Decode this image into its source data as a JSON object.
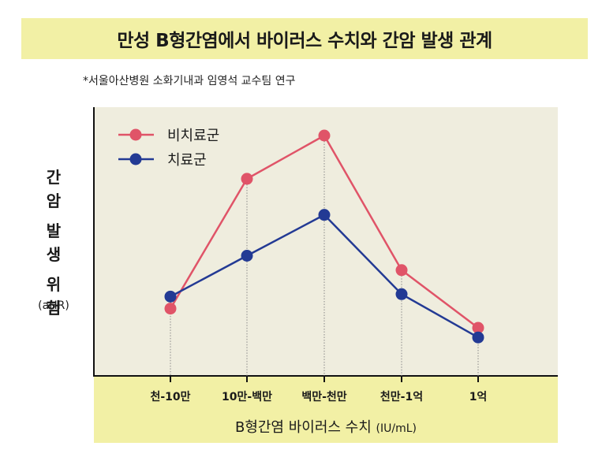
{
  "title": "만성 B형간염에서 바이러스 수치와 간암 발생 관계",
  "source_note": "*서울아산병원 소화기내과 임영석 교수팀 연구",
  "chart_data": {
    "type": "line",
    "categories": [
      "천-10만",
      "10만-백만",
      "백만-천만",
      "천만-1억",
      "1억"
    ],
    "xlabel": "B형간염 바이러스 수치",
    "xunit": "(IU/mL)",
    "ylabel_lines": [
      "간",
      "암",
      "발",
      "생",
      "위",
      "험"
    ],
    "yunit": "(aHR)",
    "ylim": [
      0,
      10
    ],
    "grid": false,
    "legend_position": "top-left",
    "series": [
      {
        "name": "비치료군",
        "color": "#e05468",
        "values": [
          2.8,
          8.2,
          10.0,
          4.4,
          2.0
        ]
      },
      {
        "name": "치료군",
        "color": "#233a94",
        "values": [
          3.3,
          5.0,
          6.7,
          3.4,
          1.6
        ]
      }
    ]
  }
}
